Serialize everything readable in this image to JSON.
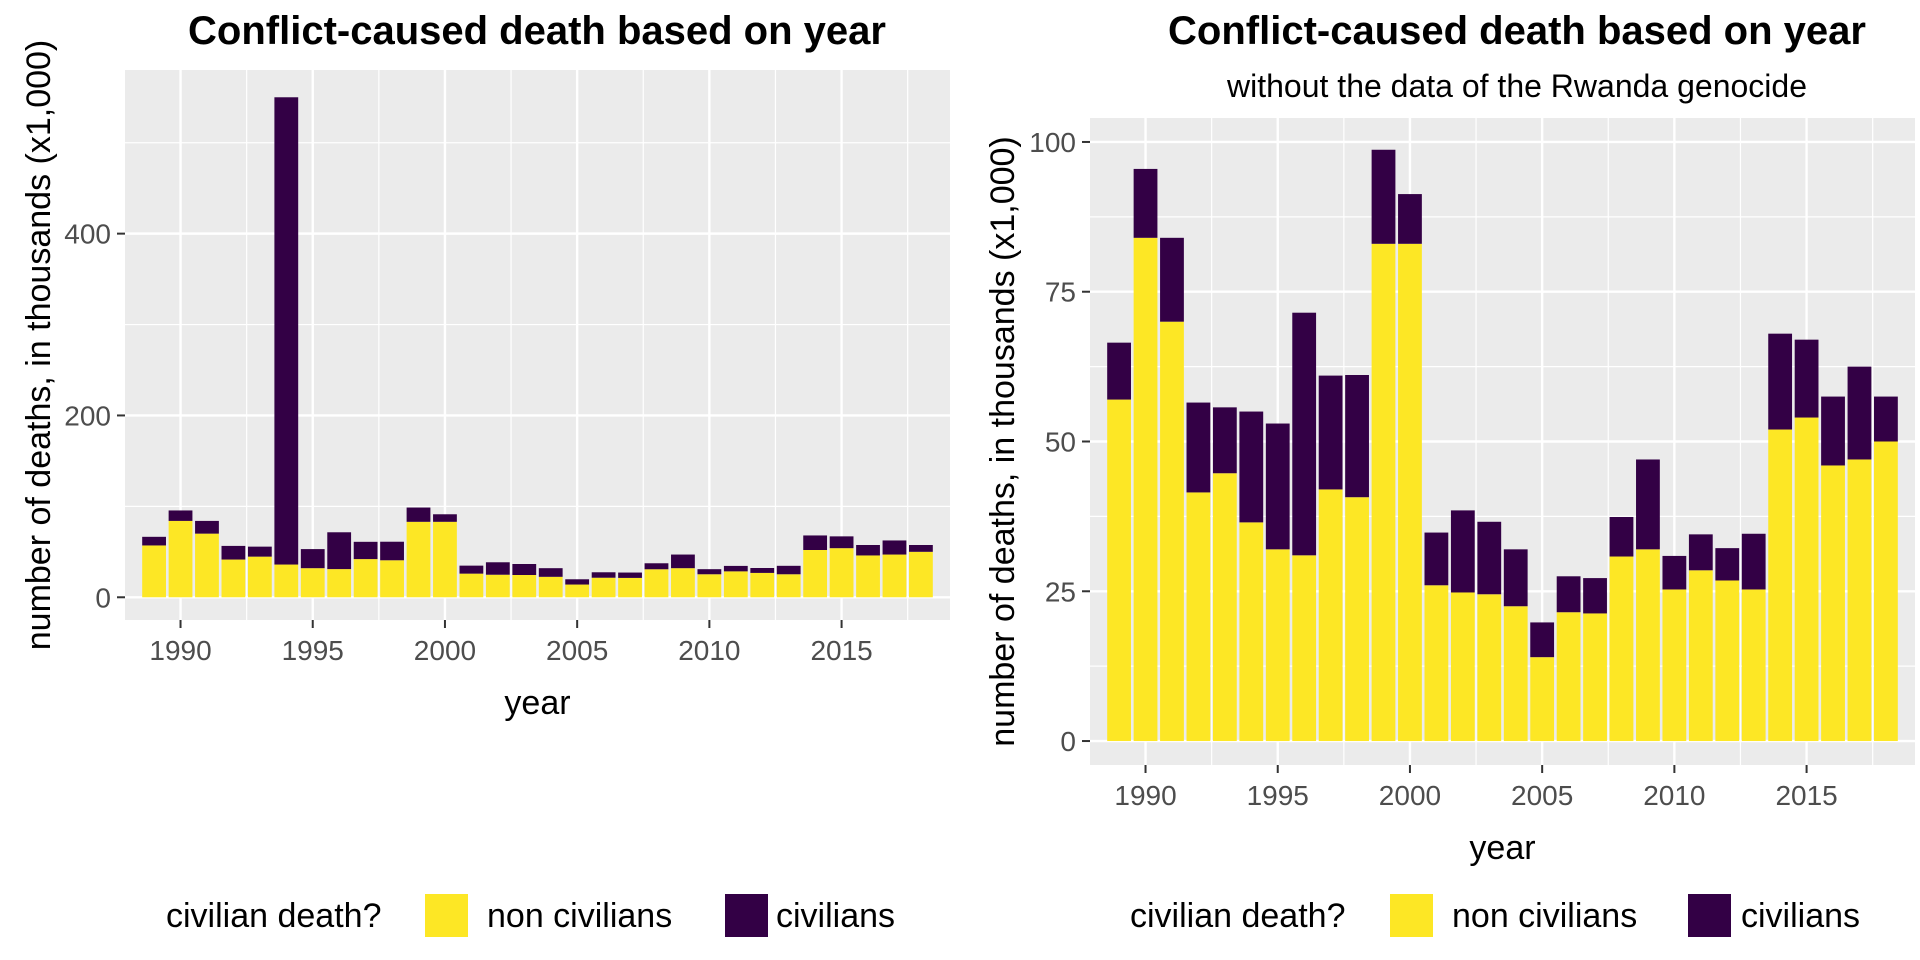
{
  "chart_data": [
    {
      "type": "bar",
      "stacked": true,
      "title": "Conflict-caused death based on year",
      "subtitle": "",
      "xlabel": "year",
      "ylabel": "number of deaths, in thousands (x1,000)",
      "x": [
        1989,
        1990,
        1991,
        1992,
        1993,
        1994,
        1995,
        1996,
        1997,
        1998,
        1999,
        2000,
        2001,
        2002,
        2003,
        2004,
        2005,
        2006,
        2007,
        2008,
        2009,
        2010,
        2011,
        2012,
        2013,
        2014,
        2015,
        2016,
        2017,
        2018
      ],
      "series": [
        {
          "name": "non civilians",
          "color": "#FDE725",
          "values": [
            57,
            84,
            70,
            41.5,
            44.7,
            36,
            32,
            31,
            42,
            40.7,
            83,
            83,
            26,
            24.8,
            24.5,
            22.5,
            14,
            21.5,
            21.3,
            30.8,
            32,
            25.3,
            28.5,
            26.8,
            25.3,
            52,
            54,
            46,
            47,
            50
          ]
        },
        {
          "name": "civilians",
          "color": "#330045",
          "values": [
            9.5,
            11.5,
            14,
            15,
            11,
            514,
            21,
            40.5,
            19,
            20.4,
            15.7,
            8.3,
            8.8,
            13.7,
            12.1,
            9.5,
            5.8,
            6,
            5.9,
            6.6,
            15,
            5.6,
            6,
            5.4,
            9.3,
            16,
            13,
            11.5,
            15.5,
            7.5
          ]
        }
      ],
      "xticks": [
        1990,
        1995,
        2000,
        2005,
        2010,
        2015
      ],
      "yticks": [
        0,
        200,
        400
      ],
      "xlim": [
        1987.9,
        2019.1
      ],
      "ylim": [
        -25,
        580
      ],
      "grid": true,
      "legend": {
        "title": "civilian death?",
        "position": "bottom",
        "entries": [
          "non civilians",
          "civilians"
        ]
      }
    },
    {
      "type": "bar",
      "stacked": true,
      "title": "Conflict-caused death based on year",
      "subtitle": "without the data of the Rwanda genocide",
      "xlabel": "year",
      "ylabel": "number of deaths, in thousands (x1,000)",
      "x": [
        1989,
        1990,
        1991,
        1992,
        1993,
        1994,
        1995,
        1996,
        1997,
        1998,
        1999,
        2000,
        2001,
        2002,
        2003,
        2004,
        2005,
        2006,
        2007,
        2008,
        2009,
        2010,
        2011,
        2012,
        2013,
        2014,
        2015,
        2016,
        2017,
        2018
      ],
      "series": [
        {
          "name": "non civilians",
          "color": "#FDE725",
          "values": [
            57,
            84,
            70,
            41.5,
            44.7,
            36.5,
            32,
            31,
            42,
            40.7,
            83,
            83,
            26,
            24.8,
            24.5,
            22.5,
            14,
            21.5,
            21.3,
            30.8,
            32,
            25.3,
            28.5,
            26.8,
            25.3,
            52,
            54,
            46,
            47,
            50
          ]
        },
        {
          "name": "civilians",
          "color": "#330045",
          "values": [
            9.5,
            11.5,
            14,
            15,
            11,
            18.5,
            21,
            40.5,
            19,
            20.4,
            15.7,
            8.3,
            8.8,
            13.7,
            12.1,
            9.5,
            5.8,
            6,
            5.9,
            6.6,
            15,
            5.6,
            6,
            5.4,
            9.3,
            16,
            13,
            11.5,
            15.5,
            7.5
          ]
        }
      ],
      "xticks": [
        1990,
        1995,
        2000,
        2005,
        2010,
        2015
      ],
      "yticks": [
        0,
        25,
        50,
        75,
        100
      ],
      "xlim": [
        1987.9,
        2019.1
      ],
      "ylim": [
        -4,
        104
      ],
      "grid": true,
      "legend": {
        "title": "civilian death?",
        "position": "bottom",
        "entries": [
          "non civilians",
          "civilians"
        ]
      }
    }
  ]
}
